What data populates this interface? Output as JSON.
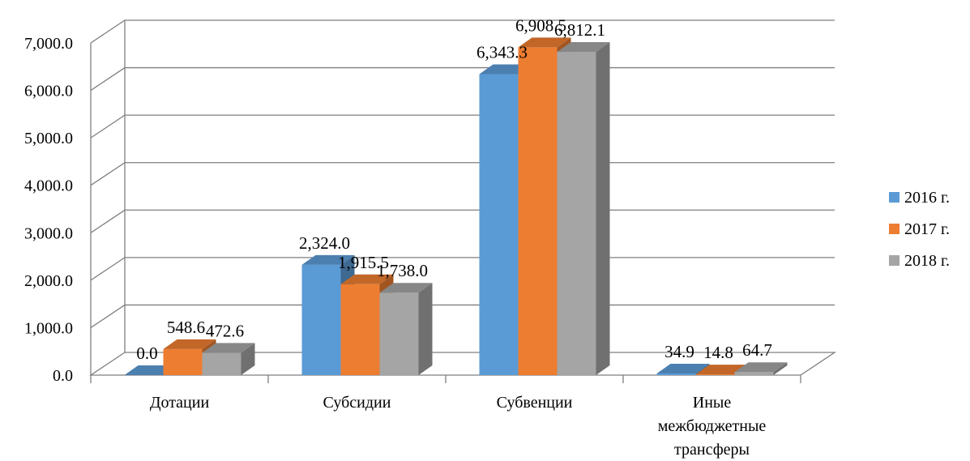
{
  "chart_data": {
    "type": "bar",
    "title": "",
    "xlabel": "",
    "ylabel": "",
    "categories": [
      "Дотации",
      "Субсидии",
      "Субвенции",
      "Иные межбюджетные трансферы"
    ],
    "category_label_lines": [
      [
        "Дотации"
      ],
      [
        "Субсидии"
      ],
      [
        "Субвенции"
      ],
      [
        "Иные",
        "межбюджетные",
        "трансферы"
      ]
    ],
    "series": [
      {
        "name": "2016 г.",
        "color": "#5b9bd5",
        "values": [
          0.0,
          2324.0,
          6343.3,
          34.9
        ],
        "labels": [
          "0.0",
          "2,324.0",
          "6,343.3",
          "34.9"
        ]
      },
      {
        "name": "2017 г.",
        "color": "#ed7d31",
        "values": [
          548.6,
          1915.5,
          6908.5,
          14.8
        ],
        "labels": [
          "548.6",
          "1,915.5",
          "6,908.5",
          "14.8"
        ]
      },
      {
        "name": "2018 г.",
        "color": "#a5a5a5",
        "values": [
          472.6,
          1738.0,
          6812.1,
          64.7
        ],
        "labels": [
          "472.6",
          "1,738.0",
          "6,812.1",
          "64.7"
        ]
      }
    ],
    "yticks": [
      0,
      1000,
      2000,
      3000,
      4000,
      5000,
      6000,
      7000
    ],
    "ytick_labels": [
      "0.0",
      "1,000.0",
      "2,000.0",
      "3,000.0",
      "4,000.0",
      "5,000.0",
      "6,000.0",
      "7,000.0"
    ],
    "ylim": [
      0,
      7000
    ],
    "grid": true,
    "legend_position": "right",
    "style": "3d-clustered-column"
  }
}
